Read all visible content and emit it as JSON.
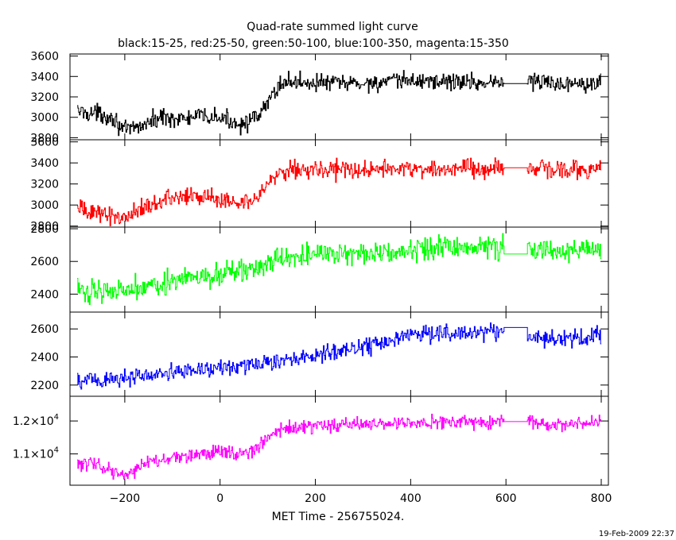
{
  "chart_data": {
    "type": "line",
    "title": "Quad-rate summed light curve",
    "subtitle": "black:15-25, red:25-50, green:50-100, blue:100-350, magenta:15-350",
    "xlabel": "MET Time - 256755024.",
    "xlim": [
      -315,
      815
    ],
    "x_ticks": [
      -200,
      0,
      200,
      400,
      600,
      800
    ],
    "x_tick_labels": [
      "−200",
      "0",
      "200",
      "400",
      "600",
      "800"
    ],
    "timestamp": "19-Feb-2009 22:37",
    "grid": false,
    "panels": [
      {
        "name": "black:15-25",
        "color": "#000000",
        "ylim": [
          2780,
          3620
        ],
        "y_ticks": [
          2800,
          3000,
          3200,
          3400,
          3600
        ],
        "y_tick_labels": [
          "2800",
          "3000",
          "3200",
          "3400",
          "3600"
        ],
        "x": [
          -300,
          -250,
          -225,
          -200,
          -160,
          -120,
          -80,
          -40,
          0,
          40,
          80,
          100,
          125,
          140,
          200,
          300,
          400,
          500,
          560,
          600,
          650,
          700,
          750,
          800
        ],
        "values": [
          3060,
          3030,
          3000,
          2860,
          2930,
          3010,
          2980,
          3010,
          2990,
          2940,
          2990,
          3150,
          3330,
          3350,
          3340,
          3330,
          3360,
          3350,
          3340,
          3350,
          3360,
          3330,
          3340,
          3360
        ],
        "noise": 75,
        "gap": [
          597,
          645
        ]
      },
      {
        "name": "red:25-50",
        "color": "#ff0000",
        "ylim": [
          2790,
          3620
        ],
        "y_ticks": [
          2800,
          3000,
          3200,
          3400,
          3600
        ],
        "y_tick_labels": [
          "2800",
          "3000",
          "3200",
          "3400",
          "3600"
        ],
        "x": [
          -300,
          -250,
          -200,
          -160,
          -120,
          -80,
          -40,
          0,
          40,
          80,
          100,
          125,
          140,
          200,
          300,
          400,
          500,
          560,
          600,
          650,
          700,
          750,
          800
        ],
        "values": [
          2960,
          2920,
          2880,
          2990,
          3050,
          3080,
          3070,
          3060,
          3030,
          3090,
          3200,
          3330,
          3340,
          3340,
          3330,
          3350,
          3340,
          3330,
          3350,
          3360,
          3330,
          3340,
          3340
        ],
        "noise": 75,
        "gap": [
          597,
          645
        ]
      },
      {
        "name": "green:50-100",
        "color": "#00ff00",
        "ylim": [
          2290,
          2810
        ],
        "y_ticks": [
          2400,
          2600,
          2800
        ],
        "y_tick_labels": [
          "2400",
          "2600",
          "2800"
        ],
        "x": [
          -300,
          -200,
          -150,
          -100,
          -50,
          0,
          50,
          100,
          140,
          200,
          300,
          400,
          500,
          600,
          700,
          800
        ],
        "values": [
          2420,
          2430,
          2460,
          2480,
          2500,
          2520,
          2540,
          2580,
          2630,
          2640,
          2650,
          2670,
          2690,
          2690,
          2660,
          2680
        ],
        "noise": 60,
        "gap": [
          597,
          645
        ]
      },
      {
        "name": "blue:100-350",
        "color": "#0000ff",
        "ylim": [
          2120,
          2720
        ],
        "y_ticks": [
          2200,
          2400,
          2600
        ],
        "y_tick_labels": [
          "2200",
          "2400",
          "2600"
        ],
        "x": [
          -300,
          -200,
          -100,
          0,
          100,
          200,
          300,
          350,
          400,
          500,
          600,
          700,
          800
        ],
        "values": [
          2230,
          2250,
          2290,
          2320,
          2360,
          2420,
          2470,
          2510,
          2560,
          2580,
          2570,
          2530,
          2540
        ],
        "noise": 55,
        "gap": [
          597,
          645
        ]
      },
      {
        "name": "magenta:15-350",
        "color": "#ff00ff",
        "ylim": [
          10050,
          12750
        ],
        "y_ticks": [
          11000,
          12000
        ],
        "y_tick_labels": [
          [
            "1.2×10",
            "4"
          ],
          [
            "1.1×10",
            "4"
          ]
        ],
        "y_tick_label_values": [
          12000,
          11000
        ],
        "x": [
          -300,
          -250,
          -200,
          -160,
          -120,
          -80,
          -40,
          0,
          40,
          80,
          100,
          125,
          140,
          200,
          300,
          400,
          500,
          600,
          700,
          800
        ],
        "values": [
          10700,
          10650,
          10300,
          10700,
          10850,
          10900,
          11000,
          11100,
          11000,
          11200,
          11500,
          11750,
          11800,
          11850,
          11900,
          11950,
          11980,
          12000,
          11900,
          11950
        ],
        "noise": 180,
        "gap": [
          597,
          645
        ]
      }
    ]
  }
}
